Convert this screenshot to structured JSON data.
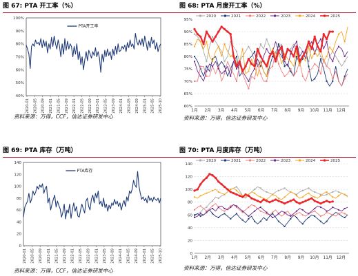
{
  "panels": [
    {
      "fig_label": "图 67:",
      "title": "PTA 开工率（%）",
      "source": "资料来源：万得，CCF，信达证券研发中心"
    },
    {
      "fig_label": "图 68:",
      "title": "PTA 月度开工率（%）",
      "source": "资料来源：万得，信达证券研发中心"
    },
    {
      "fig_label": "图 69:",
      "title": "PTA 库存（万吨）",
      "source": "资料来源：万得，CCF，信达证券研发中心"
    },
    {
      "fig_label": "图 70:",
      "title": "PTA 月度库存（万吨）",
      "source": "资料来源：万得，信达证券研发中心"
    }
  ],
  "chart_data": [
    {
      "type": "line",
      "legend": [
        "PTA开工率"
      ],
      "legend_position": "top-center",
      "ylim": [
        40,
        100
      ],
      "yticks": [
        "40%",
        "50%",
        "60%",
        "70%",
        "80%",
        "90%",
        "100%"
      ],
      "xticks": [
        "2020-01",
        "2020-05",
        "2020-09",
        "2021-01",
        "2021-05",
        "2021-09",
        "2022-01",
        "2022-05",
        "2022-09",
        "2023-01",
        "2023-05",
        "2023-09",
        "2024-01",
        "2024-05",
        "2024-09",
        "2025-01",
        "2025-05",
        "2025-10"
      ],
      "series": [
        {
          "name": "PTA开工率",
          "color": "#1f3a78",
          "values": [
            79,
            76,
            72,
            61,
            78,
            80,
            78,
            83,
            80,
            81,
            79,
            84,
            77,
            83,
            78,
            82,
            73,
            80,
            76,
            85,
            78,
            86,
            80,
            76,
            83,
            78,
            70,
            80,
            72,
            84,
            75,
            82,
            76,
            80,
            78,
            70,
            78,
            72,
            80,
            68,
            74,
            64,
            70,
            60,
            68,
            74,
            67,
            75,
            72,
            69,
            74,
            71,
            77,
            70,
            74,
            69,
            58,
            72,
            66,
            75,
            70,
            76,
            71,
            74,
            68,
            76,
            71,
            78,
            72,
            80,
            74,
            75,
            78,
            76,
            79,
            74,
            81,
            77,
            83,
            78,
            80,
            76,
            88,
            82,
            79,
            83,
            79,
            84,
            78,
            86,
            81,
            75,
            82,
            77,
            85,
            80,
            83,
            76,
            81,
            74,
            78,
            80
          ]
        }
      ]
    },
    {
      "type": "line",
      "legend": [
        "2020",
        "2021",
        "2022",
        "2023",
        "2024",
        "2025"
      ],
      "legend_position": "top",
      "ylim": [
        60,
        95
      ],
      "yticks": [
        "60%",
        "65%",
        "70%",
        "75%",
        "80%",
        "85%",
        "90%",
        "95%"
      ],
      "xticks": [
        "1月",
        "2月",
        "3月",
        "4月",
        "5月",
        "6月",
        "7月",
        "8月",
        "9月",
        "10月",
        "11月",
        "12月"
      ],
      "x_range": [
        1,
        12.6
      ],
      "series": [
        {
          "name": "2020",
          "color": "#aaaaaa",
          "values": [
            89,
            88,
            86,
            82,
            78,
            84,
            88,
            86,
            84,
            82,
            78,
            80,
            86,
            84,
            82,
            78,
            80,
            82,
            84,
            82,
            78,
            80,
            85,
            83,
            87,
            84,
            80,
            82,
            84,
            85,
            79,
            82,
            83,
            85,
            81,
            84,
            82,
            80,
            78,
            84,
            82,
            83,
            80,
            78,
            76,
            80,
            82,
            80,
            78,
            76,
            78,
            80
          ]
        },
        {
          "name": "2021",
          "color": "#1f3a78",
          "values": [
            80,
            78,
            75,
            72,
            76,
            74,
            79,
            80,
            76,
            78,
            76,
            72,
            75,
            78,
            80,
            72,
            74,
            76,
            79,
            80,
            82,
            76,
            78,
            74,
            72,
            76,
            80,
            79,
            85,
            82,
            76,
            77,
            74,
            72,
            80,
            77,
            79,
            83,
            76,
            70,
            71,
            73,
            79,
            75,
            70,
            68,
            70,
            76,
            70,
            68,
            72,
            75
          ]
        },
        {
          "name": "2022",
          "color": "#f08080",
          "values": [
            70,
            70,
            76,
            76,
            72,
            72,
            76,
            73,
            76,
            70,
            73,
            78,
            75,
            73,
            70,
            77,
            73,
            70,
            67,
            72,
            71,
            77,
            73,
            70,
            70,
            75,
            76,
            82,
            77,
            74,
            72,
            73,
            75,
            72,
            74,
            78,
            72,
            70,
            74,
            75,
            77,
            76,
            73,
            79,
            76,
            75,
            71,
            74,
            70,
            68,
            71,
            73
          ]
        },
        {
          "name": "2023",
          "color": "#6a2c8a",
          "values": [
            78,
            74,
            72,
            70,
            74,
            77,
            76,
            78,
            75,
            73,
            74,
            76,
            72,
            78,
            75,
            77,
            74,
            72,
            70,
            73,
            75,
            79,
            76,
            80,
            83,
            81,
            82,
            86,
            82,
            80,
            78,
            76,
            81,
            84,
            86,
            80,
            82,
            79,
            84,
            86,
            81,
            85,
            87,
            83,
            86,
            80,
            78,
            82,
            84,
            83,
            80,
            82
          ]
        },
        {
          "name": "2024",
          "color": "#f5a623",
          "values": [
            84,
            87,
            86,
            83,
            86,
            80,
            78,
            82,
            84,
            80,
            85,
            82,
            80,
            81,
            77,
            78,
            83,
            73,
            74,
            79,
            76,
            72,
            78,
            74,
            72,
            80,
            83,
            80,
            82,
            77,
            81,
            79,
            78,
            76,
            82,
            76,
            80,
            78,
            84,
            79,
            82,
            80,
            83,
            78,
            80,
            84,
            82,
            86,
            89,
            90,
            86,
            92
          ]
        },
        {
          "name": "2025",
          "color": "#e8262c",
          "values": [
            91,
            89,
            88,
            85,
            90,
            88,
            86,
            88,
            90,
            92,
            91,
            90,
            89,
            80,
            76,
            78,
            74,
            76,
            79,
            77,
            76,
            83,
            80,
            78,
            76,
            80,
            82,
            78,
            82,
            84,
            79,
            83,
            82,
            80,
            84,
            78,
            80,
            82,
            86,
            83,
            88,
            84,
            82,
            89,
            87,
            90,
            90
          ]
        }
      ]
    },
    {
      "type": "line",
      "legend": [
        "PTA库存"
      ],
      "legend_position": "top-center",
      "ylim": [
        0,
        140
      ],
      "yticks": [
        "0",
        "20",
        "40",
        "60",
        "80",
        "100",
        "120",
        "140"
      ],
      "xticks": [
        "2020-01",
        "2020-05",
        "2020-09",
        "2021-01",
        "2021-05",
        "2021-09",
        "2022-01",
        "2022-05",
        "2022-09",
        "2023-01",
        "2023-05",
        "2023-09",
        "2024-01",
        "2024-05",
        "2024-09",
        "2025-01",
        "2025-05",
        "2025-10"
      ],
      "series": [
        {
          "name": "PTA库存",
          "color": "#1f3a78",
          "values": [
            48,
            65,
            70,
            75,
            88,
            72,
            78,
            92,
            85,
            90,
            100,
            95,
            102,
            98,
            104,
            88,
            96,
            100,
            72,
            80,
            60,
            70,
            78,
            85,
            65,
            75,
            68,
            62,
            48,
            56,
            70,
            45,
            60,
            55,
            70,
            46,
            60,
            72,
            58,
            66,
            50,
            48,
            60,
            70,
            62,
            55,
            75,
            80,
            66,
            60,
            78,
            85,
            72,
            88,
            80,
            92,
            70,
            75,
            66,
            80,
            64,
            70,
            58,
            68,
            62,
            72,
            68,
            78,
            70,
            75,
            66,
            72,
            60,
            70,
            76,
            66,
            82,
            75,
            92,
            88,
            95,
            110,
            102,
            98,
            125,
            100,
            88,
            78,
            82,
            76,
            80,
            72,
            84,
            76,
            80,
            74,
            82,
            78,
            76,
            80,
            72,
            80
          ]
        }
      ]
    },
    {
      "type": "line",
      "legend": [
        "2020",
        "2021",
        "2022",
        "2023",
        "2024",
        "2025"
      ],
      "legend_position": "top",
      "ylim": [
        0,
        140
      ],
      "yticks": [
        "0",
        "20",
        "40",
        "60",
        "80",
        "100",
        "120",
        "140"
      ],
      "xticks": [
        "1月",
        "2月",
        "3月",
        "4月",
        "5月",
        "6月",
        "7月",
        "8月",
        "9月",
        "10月",
        "11月",
        "12月"
      ],
      "x_range": [
        1,
        12.6
      ],
      "series": [
        {
          "name": "2020",
          "color": "#aaaaaa",
          "values": [
            58,
            62,
            64,
            70,
            72,
            78,
            82,
            88,
            86,
            90,
            92,
            96,
            100,
            102,
            104,
            98,
            90,
            86,
            92,
            96,
            100,
            104,
            102,
            98,
            96,
            94,
            92,
            96,
            98,
            100,
            102,
            98,
            96,
            94,
            92,
            96,
            98,
            100,
            102,
            98,
            96,
            94,
            92,
            90,
            92,
            94,
            96,
            98,
            96,
            94,
            92,
            90
          ]
        },
        {
          "name": "2021",
          "color": "#1f3a78",
          "values": [
            60,
            62,
            58,
            60,
            64,
            68,
            62,
            58,
            56,
            60,
            62,
            58,
            54,
            58,
            62,
            56,
            52,
            48,
            54,
            58,
            50,
            46,
            50,
            56,
            52,
            58,
            62,
            56,
            50,
            46,
            42,
            48,
            54,
            60,
            56,
            50,
            46,
            52,
            56,
            60,
            58,
            54,
            50,
            46,
            50,
            56,
            60,
            64,
            62,
            58,
            56,
            60
          ]
        },
        {
          "name": "2022",
          "color": "#f08080",
          "values": [
            68,
            72,
            74,
            70,
            66,
            70,
            74,
            78,
            72,
            68,
            66,
            70,
            74,
            76,
            72,
            68,
            64,
            68,
            72,
            76,
            74,
            70,
            66,
            64,
            62,
            60,
            64,
            68,
            62,
            58,
            62,
            66,
            60,
            58,
            62,
            64,
            60,
            58,
            62,
            64,
            66,
            62,
            58,
            60,
            64,
            62,
            60,
            58,
            62,
            64,
            62,
            60
          ]
        },
        {
          "name": "2023",
          "color": "#6a2c8a",
          "values": [
            56,
            58,
            62,
            60,
            64,
            68,
            70,
            66,
            72,
            74,
            70,
            68,
            72,
            76,
            74,
            70,
            66,
            62,
            58,
            62,
            66,
            70,
            72,
            68,
            64,
            60,
            56,
            58,
            62,
            66,
            64,
            60,
            58,
            62,
            66,
            70,
            68,
            64,
            62,
            66,
            70,
            74,
            72,
            70,
            66,
            68,
            72,
            70,
            68,
            66,
            70,
            72
          ]
        },
        {
          "name": "2024",
          "color": "#f5a623",
          "values": [
            88,
            86,
            90,
            92,
            94,
            96,
            98,
            100,
            96,
            94,
            92,
            96,
            100,
            102,
            98,
            94,
            90,
            88,
            92,
            96,
            94,
            90,
            88,
            86,
            84,
            88,
            92,
            90,
            86,
            84,
            88,
            92,
            96,
            94,
            90,
            86,
            88,
            92,
            94,
            90,
            88,
            86,
            90,
            94,
            96,
            92,
            88,
            86,
            90,
            94,
            92,
            88
          ]
        },
        {
          "name": "2025",
          "color": "#e8262c",
          "values": [
            98,
            100,
            108,
            114,
            118,
            124,
            122,
            118,
            112,
            108,
            104,
            100,
            96,
            94,
            92,
            90,
            88,
            92,
            90,
            86,
            84,
            82,
            80,
            84,
            82,
            80,
            82,
            84,
            82,
            80,
            78,
            80,
            82,
            84,
            80,
            78,
            80,
            82,
            84,
            86,
            82,
            80,
            78,
            80,
            82,
            80,
            81
          ]
        }
      ]
    }
  ]
}
